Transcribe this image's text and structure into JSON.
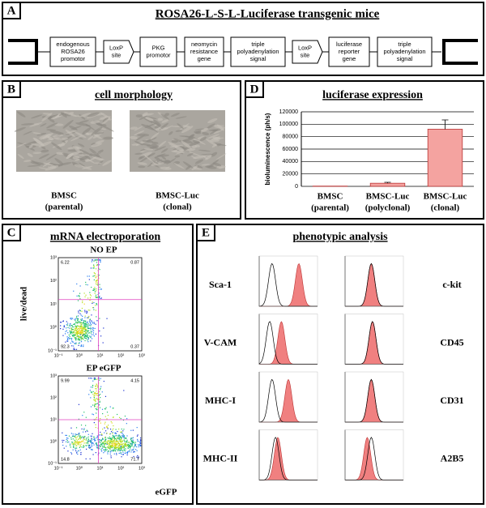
{
  "panel_a": {
    "letter": "A",
    "title": "ROSA26-L-S-L-Luciferase transgenic mice",
    "elements": [
      [
        "endogenous",
        "ROSA26",
        "promotor"
      ],
      [
        "LoxP",
        "site"
      ],
      [
        "PKG",
        "promotor"
      ],
      [
        "neomycin",
        "resistance",
        "gene"
      ],
      [
        "triple",
        "polyadenylation",
        "signal"
      ],
      [
        "LoxP",
        "site"
      ],
      [
        "luciferase",
        "reporter",
        "gene"
      ],
      [
        "triple",
        "polyadenylation",
        "signal"
      ]
    ]
  },
  "panel_b": {
    "letter": "B",
    "title": "cell morphology",
    "images": [
      [
        "BMSC",
        "(parental)"
      ],
      [
        "BMSC-Luc",
        "(clonal)"
      ]
    ]
  },
  "panel_c": {
    "letter": "C",
    "title": "mRNA electroporation",
    "y_label": "live/dead",
    "x_label": "eGFP",
    "axis_ticks": [
      "10⁻¹",
      "10⁰",
      "10¹",
      "10²",
      "10³"
    ],
    "plots": [
      {
        "title": "NO EP",
        "quadrants": [
          6.22,
          0.87,
          92.3,
          0.37
        ]
      },
      {
        "title": "EP eGFP",
        "quadrants": [
          9.99,
          4.15,
          14.8,
          71.7
        ]
      }
    ]
  },
  "panel_d": {
    "letter": "D",
    "title": "luciferase expression",
    "chart": {
      "type": "bar",
      "y_label": "bioluminescence (ph/s)",
      "categories": [
        [
          "BMSC",
          "(parental)"
        ],
        [
          "BMSC-Luc",
          "(polyclonal)"
        ],
        [
          "BMSC-Luc",
          "(clonal)"
        ]
      ],
      "values": [
        400,
        5000,
        92000
      ],
      "errors": [
        null,
        1500,
        15000
      ],
      "color": "#f4a3a0",
      "ylim": [
        0,
        120000
      ],
      "yticks": [
        0,
        20000,
        40000,
        60000,
        80000,
        100000,
        120000
      ],
      "grid": true
    }
  },
  "panel_e": {
    "letter": "E",
    "title": "phenotypic analysis",
    "rows": [
      {
        "left": "Sca-1",
        "right": "c-kit"
      },
      {
        "left": "V-CAM",
        "right": "CD45"
      },
      {
        "left": "MHC-I",
        "right": "CD31"
      },
      {
        "left": "MHC-II",
        "right": "A2B5"
      }
    ]
  }
}
